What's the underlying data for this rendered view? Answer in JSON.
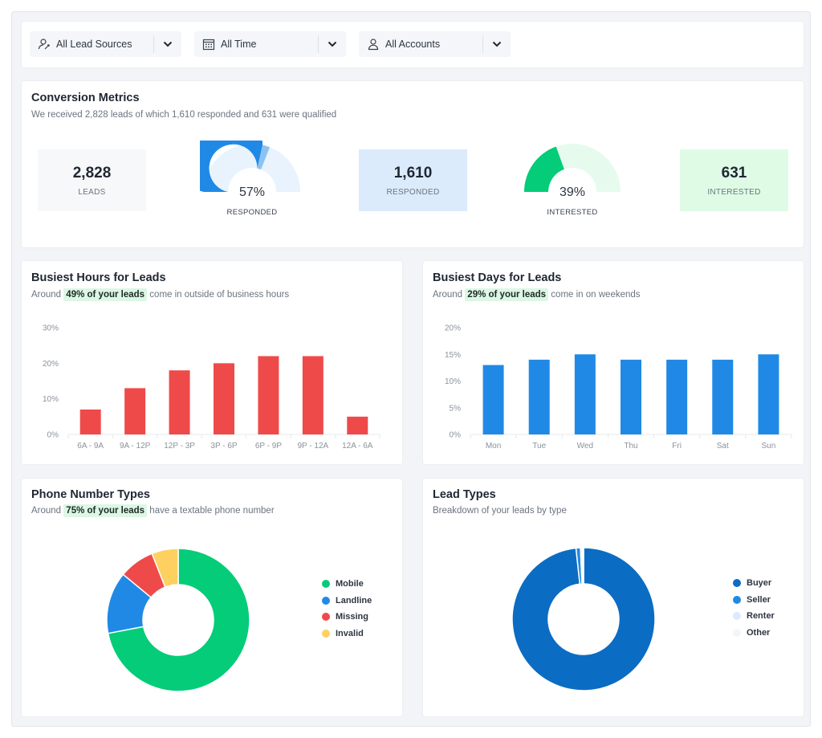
{
  "filters": [
    {
      "label": "All Lead Sources",
      "icon": "lead-source-icon"
    },
    {
      "label": "All Time",
      "icon": "calendar-icon"
    },
    {
      "label": "All Accounts",
      "icon": "user-icon"
    }
  ],
  "conversion": {
    "title": "Conversion Metrics",
    "subtitle": "We received 2,828 leads of which 1,610 responded and 631 were qualified",
    "leads": {
      "value": "2,828",
      "label": "LEADS"
    },
    "responded_gauge": {
      "percent": "57%",
      "label": "RESPONDED",
      "fraction": 0.57
    },
    "responded": {
      "value": "1,610",
      "label": "RESPONDED"
    },
    "interested_gauge": {
      "percent": "39%",
      "label": "INTERESTED",
      "fraction": 0.39
    },
    "interested": {
      "value": "631",
      "label": "INTERESTED"
    }
  },
  "hours": {
    "title": "Busiest Hours for Leads",
    "sub_pre": "Around",
    "sub_hl": "49% of your leads",
    "sub_post": "come in outside of business hours"
  },
  "days": {
    "title": "Busiest Days for Leads",
    "sub_pre": "Around",
    "sub_hl": "29% of your leads",
    "sub_post": "come in on weekends"
  },
  "phone": {
    "title": "Phone Number Types",
    "sub_pre": "Around",
    "sub_hl": "75% of your leads",
    "sub_post": "have a textable phone number"
  },
  "lead_types": {
    "title": "Lead Types",
    "subtitle": "Breakdown of your leads by type"
  },
  "colors": {
    "red": "#ef4a4a",
    "blue": "#2089e6",
    "green": "#04cc78",
    "yellow": "#fdd060",
    "dark_blue": "#0b6cc3",
    "light_blue": "#dcebfb",
    "pale_blue": "#e8f3fd",
    "pale_green": "#e6fbee"
  },
  "chart_data": [
    {
      "type": "bar",
      "title": "Busiest Hours for Leads",
      "categories": [
        "6A - 9A",
        "9A - 12P",
        "12P - 3P",
        "3P - 6P",
        "6P - 9P",
        "9P - 12A",
        "12A - 6A"
      ],
      "values": [
        7,
        13,
        18,
        20,
        22,
        22,
        5
      ],
      "yticks": [
        "0%",
        "10%",
        "20%",
        "30%"
      ],
      "ylim": [
        0,
        30
      ],
      "color": "#ef4a4a",
      "grid": false
    },
    {
      "type": "bar",
      "title": "Busiest Days for Leads",
      "categories": [
        "Mon",
        "Tue",
        "Wed",
        "Thu",
        "Fri",
        "Sat",
        "Sun"
      ],
      "values": [
        13,
        14,
        15,
        14,
        14,
        14,
        15
      ],
      "yticks": [
        "0%",
        "5%",
        "10%",
        "15%",
        "20%"
      ],
      "ylim": [
        0,
        20
      ],
      "color": "#2089e6",
      "grid": false
    },
    {
      "type": "pie",
      "title": "Phone Number Types",
      "donut": true,
      "labels": [
        "Mobile",
        "Landline",
        "Missing",
        "Invalid"
      ],
      "values": [
        72,
        14,
        8,
        6
      ],
      "colors": [
        "#04cc78",
        "#2089e6",
        "#ef4a4a",
        "#fdd060"
      ],
      "legend": "right"
    },
    {
      "type": "pie",
      "title": "Lead Types",
      "donut": true,
      "labels": [
        "Buyer",
        "Seller",
        "Renter",
        "Other"
      ],
      "values": [
        98.3,
        1.0,
        0.4,
        0.3
      ],
      "colors": [
        "#0b6cc3",
        "#2089e6",
        "#dcebfb",
        "#f4f5f7"
      ],
      "legend": "right"
    }
  ]
}
